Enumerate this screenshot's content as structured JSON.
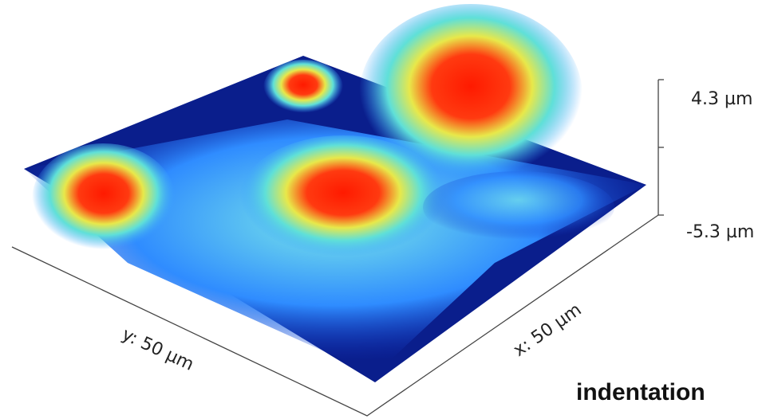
{
  "axes": {
    "z_top": "4.3 µm",
    "z_bottom": "-5.3 µm",
    "y_label": "y: 50 µm",
    "x_label": "x: 50 µm"
  },
  "caption": "indentation"
}
